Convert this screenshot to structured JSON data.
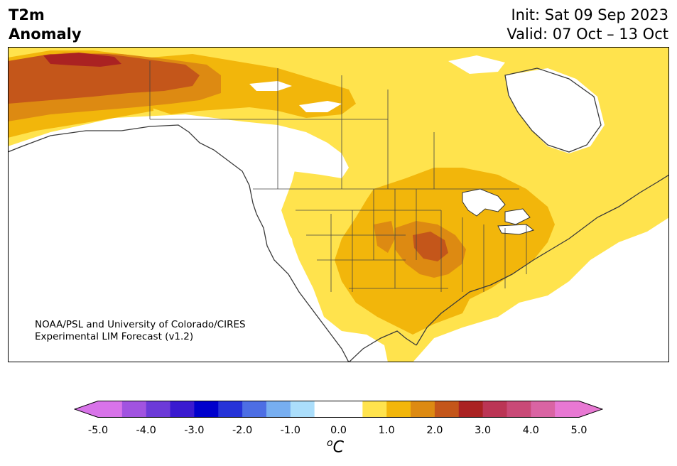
{
  "title": {
    "line1": "T2m",
    "line2": "Anomaly"
  },
  "forecast": {
    "init": "Init: Sat 09 Sep 2023",
    "valid": "Valid: 07 Oct – 13 Oct"
  },
  "credit": {
    "line1": "NOAA/PSL and University of Colorado/CIRES",
    "line2": "Experimental LIM Forecast (v1.2)"
  },
  "colorbar": {
    "unit": "C",
    "unit_prefix": "o",
    "ticks": [
      "-5.0",
      "-4.0",
      "-3.0",
      "-2.0",
      "-1.0",
      "0.0",
      "1.0",
      "2.0",
      "3.0",
      "4.0",
      "5.0"
    ],
    "colors": [
      "#d873e9",
      "#a153e0",
      "#6c3ad8",
      "#3a1ad0",
      "#0000cc",
      "#2633d8",
      "#4d6ee4",
      "#77aef0",
      "#abdefb",
      "#ffffff",
      "#ffffff",
      "#ffe34d",
      "#f2b60b",
      "#dd8a12",
      "#c4561a",
      "#aa2222",
      "#bb3555",
      "#c94a77",
      "#d964a3",
      "#e878d3"
    ],
    "under_color": "#d873e9",
    "over_color": "#e878d3"
  },
  "legend_colors": {
    "anom_0_5": "#ffe34d",
    "anom_1_0": "#f2b60b",
    "anom_1_5": "#dd8a12",
    "anom_2_0": "#c4561a",
    "anom_2_5": "#aa2222"
  }
}
